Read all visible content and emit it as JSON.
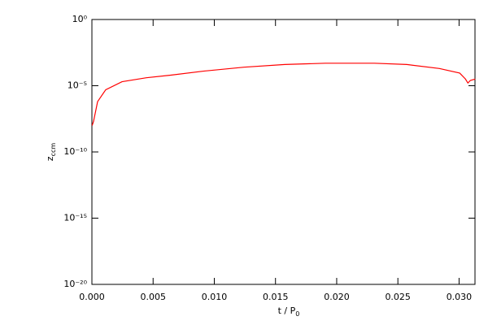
{
  "chart_data": {
    "type": "line",
    "xlabel": {
      "text": "t / P",
      "subscript": "0"
    },
    "ylabel": {
      "text": "z",
      "subscript": "ccm"
    },
    "x": [
      2e-05,
      0.000133,
      0.000465,
      0.00113,
      0.00246,
      0.00445,
      0.00644,
      0.00911,
      0.01243,
      0.01576,
      0.01908,
      0.02307,
      0.02573,
      0.02839,
      0.03005,
      0.03052,
      0.03072,
      0.03092,
      0.03132
    ],
    "series": [
      {
        "color": "#ff0000",
        "values": [
          1e-08,
          2e-08,
          6.3e-07,
          5e-06,
          2e-05,
          4e-05,
          6.3e-05,
          0.000126,
          0.00025,
          0.0004,
          0.0005,
          0.0005,
          0.0004,
          0.0002,
          9e-05,
          3.2e-05,
          1.6e-05,
          2.5e-05,
          3.2e-05
        ]
      }
    ],
    "xlim": [
      0,
      0.0313
    ],
    "xticks": [
      {
        "value": 0,
        "label": "0.000"
      },
      {
        "value": 0.005,
        "label": "0.005"
      },
      {
        "value": 0.01,
        "label": "0.010"
      },
      {
        "value": 0.015,
        "label": "0.015"
      },
      {
        "value": 0.02,
        "label": "0.020"
      },
      {
        "value": 0.025,
        "label": "0.025"
      },
      {
        "value": 0.03,
        "label": "0.030"
      }
    ],
    "ylim": [
      1e-20,
      1
    ],
    "yticks": [
      {
        "value": 1e-20,
        "label": "10⁻²⁰"
      },
      {
        "value": 1e-15,
        "label": "10⁻¹⁵"
      },
      {
        "value": 1e-10,
        "label": "10⁻¹⁰"
      },
      {
        "value": 1e-05,
        "label": "10⁻⁵"
      },
      {
        "value": 1,
        "label": "10⁰"
      }
    ],
    "ylog": true
  }
}
